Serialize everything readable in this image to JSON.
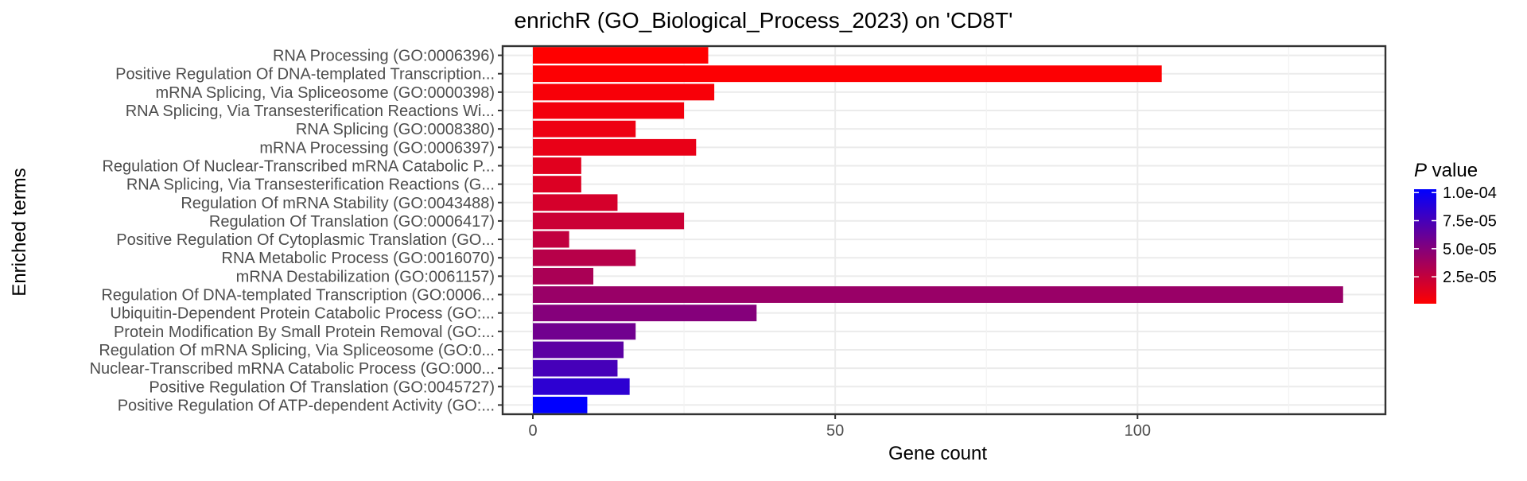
{
  "chart_data": {
    "type": "bar",
    "orientation": "horizontal",
    "title": "enrichR (GO_Biological_Process_2023) on 'CD8T'",
    "xlabel": "Gene count",
    "ylabel": "Enriched terms",
    "xlim": [
      -5,
      141
    ],
    "x_ticks": [
      0,
      50,
      100
    ],
    "grid": true,
    "legend_position": "right",
    "categories": [
      "RNA Processing (GO:0006396)",
      "Positive Regulation Of DNA-templated Transcription...",
      "mRNA Splicing, Via Spliceosome (GO:0000398)",
      "RNA Splicing, Via Transesterification Reactions Wi...",
      "RNA Splicing (GO:0008380)",
      "mRNA Processing (GO:0006397)",
      "Regulation Of Nuclear-Transcribed mRNA Catabolic P...",
      "RNA Splicing, Via Transesterification Reactions (G...",
      "Regulation Of mRNA Stability (GO:0043488)",
      "Regulation Of Translation (GO:0006417)",
      "Positive Regulation Of Cytoplasmic Translation (GO...",
      "RNA Metabolic Process (GO:0016070)",
      "mRNA Destabilization (GO:0061157)",
      "Regulation Of DNA-templated Transcription (GO:0006...",
      "Ubiquitin-Dependent Protein Catabolic Process (GO:...",
      "Protein Modification By Small Protein Removal (GO:...",
      "Regulation Of mRNA Splicing, Via Spliceosome (GO:0...",
      "Nuclear-Transcribed mRNA Catabolic Process (GO:000...",
      "Positive Regulation Of Translation (GO:0045727)",
      "Positive Regulation Of ATP-dependent Activity (GO:..."
    ],
    "values": [
      29,
      104,
      30,
      25,
      17,
      27,
      8,
      8,
      14,
      25,
      6,
      17,
      10,
      134,
      37,
      17,
      15,
      14,
      16,
      9
    ],
    "p_values": [
      1e-06,
      2e-06,
      4e-06,
      6e-06,
      8e-06,
      1e-05,
      1.3e-05,
      1.5e-05,
      1.8e-05,
      2.2e-05,
      2.6e-05,
      3e-05,
      3.5e-05,
      4.2e-05,
      5e-05,
      5.8e-05,
      6.6e-05,
      7.5e-05,
      8.5e-05,
      0.000103
    ],
    "legend": {
      "title_italic": "P",
      "title_rest": " value",
      "ticks": [
        {
          "label": "1.0e-04",
          "value": 0.0001
        },
        {
          "label": "7.5e-05",
          "value": 7.5e-05
        },
        {
          "label": "5.0e-05",
          "value": 5e-05
        },
        {
          "label": "2.5e-05",
          "value": 2.5e-05
        }
      ],
      "range": [
        1e-06,
        0.000103
      ],
      "low_color": "#ff0000",
      "high_color": "#0000ff"
    }
  }
}
